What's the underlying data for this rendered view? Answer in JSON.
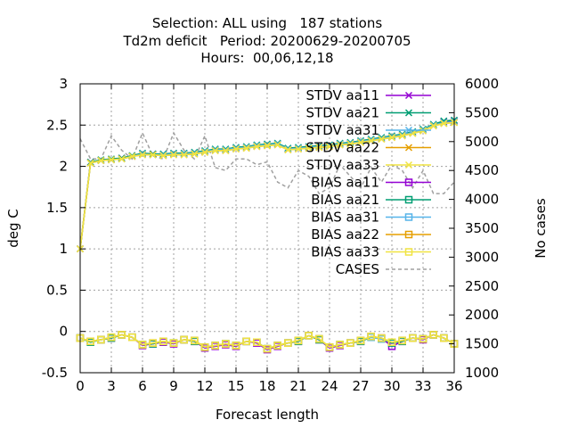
{
  "chart_data": {
    "type": "line",
    "title_lines": [
      "Selection: ALL using   187 stations",
      "Td2m deficit   Period: 20200629-20200705",
      "Hours:  00,06,12,18"
    ],
    "xlabel": "Forecast length",
    "ylabel": "deg C",
    "y2label": "No cases",
    "xlim": [
      0,
      36
    ],
    "ylim": [
      -0.5,
      3
    ],
    "y2lim": [
      1000,
      6000
    ],
    "xticks": [
      0,
      3,
      6,
      9,
      12,
      15,
      18,
      21,
      24,
      27,
      30,
      33,
      36
    ],
    "yticks": [
      "-0.5",
      "0",
      "0.5",
      "1",
      "1.5",
      "2",
      "2.5",
      "3"
    ],
    "y2ticks": [
      "1000",
      "1500",
      "2000",
      "2500",
      "3000",
      "3500",
      "4000",
      "4500",
      "5000",
      "5500",
      "6000"
    ],
    "grid": true,
    "legend_position": "top-right",
    "x": [
      0,
      1,
      2,
      3,
      4,
      5,
      6,
      7,
      8,
      9,
      10,
      11,
      12,
      13,
      14,
      15,
      16,
      17,
      18,
      19,
      20,
      21,
      22,
      23,
      24,
      25,
      26,
      27,
      28,
      29,
      30,
      31,
      32,
      33,
      34,
      35,
      36
    ],
    "series": [
      {
        "name": "STDV aa11",
        "color": "#9400d3",
        "marker": "x",
        "axis": "y",
        "values": [
          1.0,
          2.05,
          2.07,
          2.08,
          2.1,
          2.12,
          2.15,
          2.15,
          2.14,
          2.15,
          2.15,
          2.16,
          2.18,
          2.2,
          2.2,
          2.22,
          2.23,
          2.25,
          2.26,
          2.27,
          2.21,
          2.22,
          2.23,
          2.24,
          2.25,
          2.27,
          2.28,
          2.3,
          2.32,
          2.34,
          2.36,
          2.38,
          2.41,
          2.44,
          2.5,
          2.54,
          2.55
        ]
      },
      {
        "name": "STDV aa21",
        "color": "#009e73",
        "marker": "x",
        "axis": "y",
        "values": [
          1.0,
          2.05,
          2.08,
          2.09,
          2.1,
          2.13,
          2.16,
          2.15,
          2.15,
          2.16,
          2.16,
          2.17,
          2.19,
          2.21,
          2.21,
          2.23,
          2.24,
          2.26,
          2.27,
          2.28,
          2.22,
          2.23,
          2.24,
          2.25,
          2.26,
          2.28,
          2.29,
          2.31,
          2.33,
          2.35,
          2.37,
          2.39,
          2.42,
          2.45,
          2.51,
          2.55,
          2.56
        ]
      },
      {
        "name": "STDV aa31",
        "color": "#56b4e9",
        "marker": "x",
        "axis": "y",
        "values": [
          1.0,
          2.04,
          2.07,
          2.08,
          2.09,
          2.12,
          2.15,
          2.14,
          2.14,
          2.15,
          2.15,
          2.16,
          2.18,
          2.2,
          2.2,
          2.22,
          2.23,
          2.25,
          2.26,
          2.27,
          2.21,
          2.22,
          2.23,
          2.24,
          2.25,
          2.27,
          2.28,
          2.3,
          2.32,
          2.34,
          2.36,
          2.38,
          2.41,
          2.44,
          2.5,
          2.53,
          2.54
        ]
      },
      {
        "name": "STDV aa22",
        "color": "#e69f00",
        "marker": "x",
        "axis": "y",
        "values": [
          1.0,
          2.04,
          2.07,
          2.08,
          2.09,
          2.12,
          2.14,
          2.14,
          2.13,
          2.14,
          2.14,
          2.15,
          2.17,
          2.19,
          2.19,
          2.21,
          2.22,
          2.24,
          2.25,
          2.26,
          2.2,
          2.21,
          2.22,
          2.23,
          2.24,
          2.26,
          2.27,
          2.29,
          2.31,
          2.33,
          2.35,
          2.37,
          2.4,
          2.43,
          2.49,
          2.52,
          2.53
        ]
      },
      {
        "name": "STDV aa33",
        "color": "#f0e442",
        "marker": "x",
        "axis": "y",
        "values": [
          1.0,
          2.04,
          2.07,
          2.08,
          2.09,
          2.12,
          2.14,
          2.14,
          2.13,
          2.14,
          2.14,
          2.15,
          2.17,
          2.19,
          2.19,
          2.21,
          2.22,
          2.24,
          2.25,
          2.26,
          2.2,
          2.21,
          2.22,
          2.23,
          2.24,
          2.26,
          2.27,
          2.29,
          2.31,
          2.33,
          2.35,
          2.37,
          2.4,
          2.43,
          2.49,
          2.52,
          2.53
        ]
      },
      {
        "name": "BIAS aa11",
        "color": "#9400d3",
        "marker": "square",
        "axis": "y",
        "values": [
          -0.08,
          -0.12,
          -0.1,
          -0.08,
          -0.04,
          -0.07,
          -0.17,
          -0.15,
          -0.13,
          -0.15,
          -0.1,
          -0.12,
          -0.2,
          -0.18,
          -0.16,
          -0.18,
          -0.12,
          -0.14,
          -0.22,
          -0.18,
          -0.14,
          -0.12,
          -0.05,
          -0.1,
          -0.2,
          -0.17,
          -0.14,
          -0.12,
          -0.06,
          -0.08,
          -0.18,
          -0.12,
          -0.08,
          -0.1,
          -0.04,
          -0.08,
          -0.15
        ]
      },
      {
        "name": "BIAS aa21",
        "color": "#009e73",
        "marker": "square",
        "axis": "y",
        "values": [
          -0.08,
          -0.13,
          -0.1,
          -0.08,
          -0.04,
          -0.07,
          -0.16,
          -0.15,
          -0.12,
          -0.14,
          -0.1,
          -0.12,
          -0.19,
          -0.17,
          -0.15,
          -0.17,
          -0.12,
          -0.13,
          -0.21,
          -0.17,
          -0.14,
          -0.12,
          -0.05,
          -0.1,
          -0.19,
          -0.16,
          -0.14,
          -0.12,
          -0.07,
          -0.09,
          -0.14,
          -0.12,
          -0.08,
          -0.09,
          -0.04,
          -0.08,
          -0.15
        ]
      },
      {
        "name": "BIAS aa31",
        "color": "#56b4e9",
        "marker": "square",
        "axis": "y",
        "values": [
          -0.08,
          -0.12,
          -0.1,
          -0.07,
          -0.04,
          -0.07,
          -0.16,
          -0.14,
          -0.12,
          -0.14,
          -0.1,
          -0.11,
          -0.19,
          -0.17,
          -0.15,
          -0.17,
          -0.12,
          -0.13,
          -0.21,
          -0.17,
          -0.14,
          -0.11,
          -0.05,
          -0.09,
          -0.19,
          -0.16,
          -0.14,
          -0.11,
          -0.07,
          -0.09,
          -0.13,
          -0.11,
          -0.08,
          -0.09,
          -0.04,
          -0.08,
          -0.15
        ]
      },
      {
        "name": "BIAS aa22",
        "color": "#e69f00",
        "marker": "square",
        "axis": "y",
        "values": [
          -0.08,
          -0.12,
          -0.1,
          -0.07,
          -0.04,
          -0.07,
          -0.16,
          -0.14,
          -0.12,
          -0.14,
          -0.1,
          -0.11,
          -0.19,
          -0.17,
          -0.15,
          -0.17,
          -0.12,
          -0.13,
          -0.21,
          -0.17,
          -0.14,
          -0.11,
          -0.05,
          -0.09,
          -0.19,
          -0.16,
          -0.14,
          -0.11,
          -0.06,
          -0.08,
          -0.13,
          -0.11,
          -0.08,
          -0.09,
          -0.04,
          -0.08,
          -0.15
        ]
      },
      {
        "name": "BIAS aa33",
        "color": "#f0e442",
        "marker": "square",
        "axis": "y",
        "values": [
          -0.08,
          -0.12,
          -0.1,
          -0.07,
          -0.04,
          -0.07,
          -0.16,
          -0.14,
          -0.12,
          -0.14,
          -0.1,
          -0.11,
          -0.19,
          -0.17,
          -0.15,
          -0.17,
          -0.12,
          -0.13,
          -0.21,
          -0.17,
          -0.14,
          -0.11,
          -0.05,
          -0.09,
          -0.19,
          -0.16,
          -0.14,
          -0.11,
          -0.06,
          -0.08,
          -0.13,
          -0.11,
          -0.08,
          -0.09,
          -0.04,
          -0.08,
          -0.15
        ]
      },
      {
        "name": "CASES",
        "color": "#a0a0a0",
        "marker": "none",
        "dash": true,
        "axis": "y2",
        "values": [
          5050,
          4700,
          4700,
          5100,
          4850,
          4700,
          5150,
          4750,
          4700,
          5150,
          4850,
          4700,
          5100,
          4550,
          4500,
          4700,
          4700,
          4600,
          4650,
          4300,
          4200,
          4500,
          4400,
          4100,
          4200,
          4600,
          4400,
          4200,
          4550,
          4300,
          4600,
          4500,
          4200,
          4500,
          4100,
          4100,
          4300
        ]
      }
    ]
  }
}
